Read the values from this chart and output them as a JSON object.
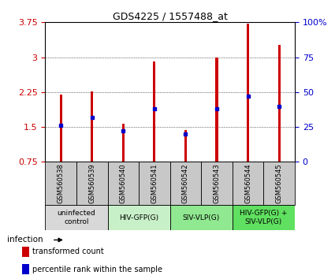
{
  "title": "GDS4225 / 1557488_at",
  "samples": [
    "GSM560538",
    "GSM560539",
    "GSM560540",
    "GSM560541",
    "GSM560542",
    "GSM560543",
    "GSM560544",
    "GSM560545"
  ],
  "transformed_counts": [
    2.2,
    2.27,
    1.57,
    2.9,
    1.43,
    3.0,
    3.73,
    3.27
  ],
  "percentile_ranks": [
    26,
    32,
    22,
    38,
    20,
    38,
    47,
    40
  ],
  "ylim_left": [
    0.75,
    3.75
  ],
  "ylim_right": [
    0,
    100
  ],
  "yticks_left": [
    0.75,
    1.5,
    2.25,
    3.0,
    3.75
  ],
  "yticks_right": [
    0,
    25,
    50,
    75,
    100
  ],
  "ytick_labels_left": [
    "0.75",
    "1.5",
    "2.25",
    "3",
    "3.75"
  ],
  "ytick_labels_right": [
    "0",
    "25",
    "50",
    "75",
    "100%"
  ],
  "groups": [
    {
      "label": "uninfected\ncontrol",
      "start": 0,
      "end": 2,
      "color": "#d8d8d8"
    },
    {
      "label": "HIV-GFP(G)",
      "start": 2,
      "end": 4,
      "color": "#c8f0c8"
    },
    {
      "label": "SIV-VLP(G)",
      "start": 4,
      "end": 6,
      "color": "#90e890"
    },
    {
      "label": "HIV-GFP(G) +\nSIV-VLP(G)",
      "start": 6,
      "end": 8,
      "color": "#60e060"
    }
  ],
  "bar_color": "#cc0000",
  "blue_marker_color": "#0000cc",
  "grid_color": "#000000",
  "background_color": "#ffffff",
  "tick_label_color_left": "#cc0000",
  "tick_label_color_right": "#0000cc",
  "bar_width": 0.08,
  "sample_box_color": "#c8c8c8"
}
